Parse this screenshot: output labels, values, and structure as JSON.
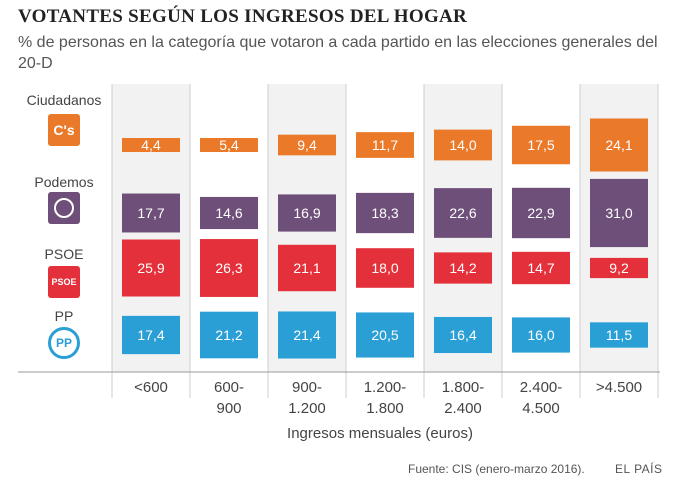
{
  "chart_data": {
    "type": "bar",
    "title": "VOTANTES SEGÚN LOS INGRESOS DEL HOGAR",
    "subtitle": "% de personas en la categoría que votaron a cada partido en las elecciones generales del 20-D",
    "xlabel": "Ingresos mensuales (euros)",
    "categories": [
      [
        "<600"
      ],
      [
        "600-",
        "900"
      ],
      [
        "900-",
        "1.200"
      ],
      [
        "1.200-",
        "1.800"
      ],
      [
        "1.800-",
        "2.400"
      ],
      [
        "2.400-",
        "4.500"
      ],
      [
        ">4.500"
      ]
    ],
    "series": [
      {
        "name": "Ciudadanos",
        "logo_text": "C's",
        "color": "#ea7a2a",
        "values": [
          4.4,
          5.4,
          9.4,
          11.7,
          14.0,
          17.5,
          24.1
        ],
        "labels": [
          "4,4",
          "5,4",
          "9,4",
          "11,7",
          "14,0",
          "17,5",
          "24,1"
        ]
      },
      {
        "name": "Podemos",
        "logo_text": "",
        "color": "#6e4f79",
        "values": [
          17.7,
          14.6,
          16.9,
          18.3,
          22.6,
          22.9,
          31.0
        ],
        "labels": [
          "17,7",
          "14,6",
          "16,9",
          "18,3",
          "22,6",
          "22,9",
          "31,0"
        ]
      },
      {
        "name": "PSOE",
        "logo_text": "PSOE",
        "color": "#e3303a",
        "values": [
          25.9,
          26.3,
          21.1,
          18.0,
          14.2,
          14.7,
          9.2
        ],
        "labels": [
          "25,9",
          "26,3",
          "21,1",
          "18,0",
          "14,2",
          "14,7",
          "9,2"
        ]
      },
      {
        "name": "PP",
        "logo_text": "PP",
        "color": "#2a9fd6",
        "values": [
          17.4,
          21.2,
          21.4,
          20.5,
          16.4,
          16.0,
          11.5
        ],
        "labels": [
          "17,4",
          "21,2",
          "21,4",
          "20,5",
          "16,4",
          "16,0",
          "11,5"
        ]
      }
    ]
  },
  "footer": {
    "source": "Fuente: CIS (enero-marzo 2016).",
    "brand": "EL PAÍS"
  }
}
